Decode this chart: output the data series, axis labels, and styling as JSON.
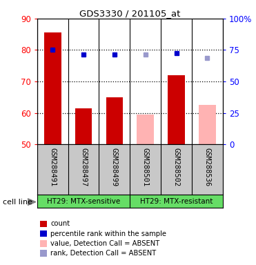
{
  "title": "GDS3330 / 201105_at",
  "samples": [
    "GSM288491",
    "GSM288497",
    "GSM288499",
    "GSM288501",
    "GSM288502",
    "GSM288536"
  ],
  "bar_values": [
    85.5,
    61.5,
    65.0,
    59.5,
    72.0,
    62.5
  ],
  "bar_colors": [
    "#cc0000",
    "#cc0000",
    "#cc0000",
    "#ffb3b3",
    "#cc0000",
    "#ffb3b3"
  ],
  "rank_values": [
    80.0,
    78.5,
    78.5,
    78.5,
    79.0,
    77.5
  ],
  "rank_colors": [
    "#0000cc",
    "#0000cc",
    "#0000cc",
    "#9999cc",
    "#0000cc",
    "#9999cc"
  ],
  "bar_bottom": 50,
  "ylim_left": [
    50,
    90
  ],
  "ylim_right": [
    0,
    100
  ],
  "yticks_left": [
    50,
    60,
    70,
    80,
    90
  ],
  "yticks_right": [
    0,
    25,
    50,
    75,
    100
  ],
  "ytick_labels_right": [
    "0",
    "25",
    "50",
    "75",
    "100%"
  ],
  "group1_label": "HT29: MTX-sensitive",
  "group2_label": "HT29: MTX-resistant",
  "cell_line_label": "cell line",
  "legend_items": [
    {
      "color": "#cc0000",
      "label": "count"
    },
    {
      "color": "#0000cc",
      "label": "percentile rank within the sample"
    },
    {
      "color": "#ffb3b3",
      "label": "value, Detection Call = ABSENT"
    },
    {
      "color": "#9999cc",
      "label": "rank, Detection Call = ABSENT"
    }
  ],
  "label_bg_color": "#c8c8c8",
  "group_bg_color": "#66dd66",
  "bar_width": 0.55,
  "marker_size": 5
}
